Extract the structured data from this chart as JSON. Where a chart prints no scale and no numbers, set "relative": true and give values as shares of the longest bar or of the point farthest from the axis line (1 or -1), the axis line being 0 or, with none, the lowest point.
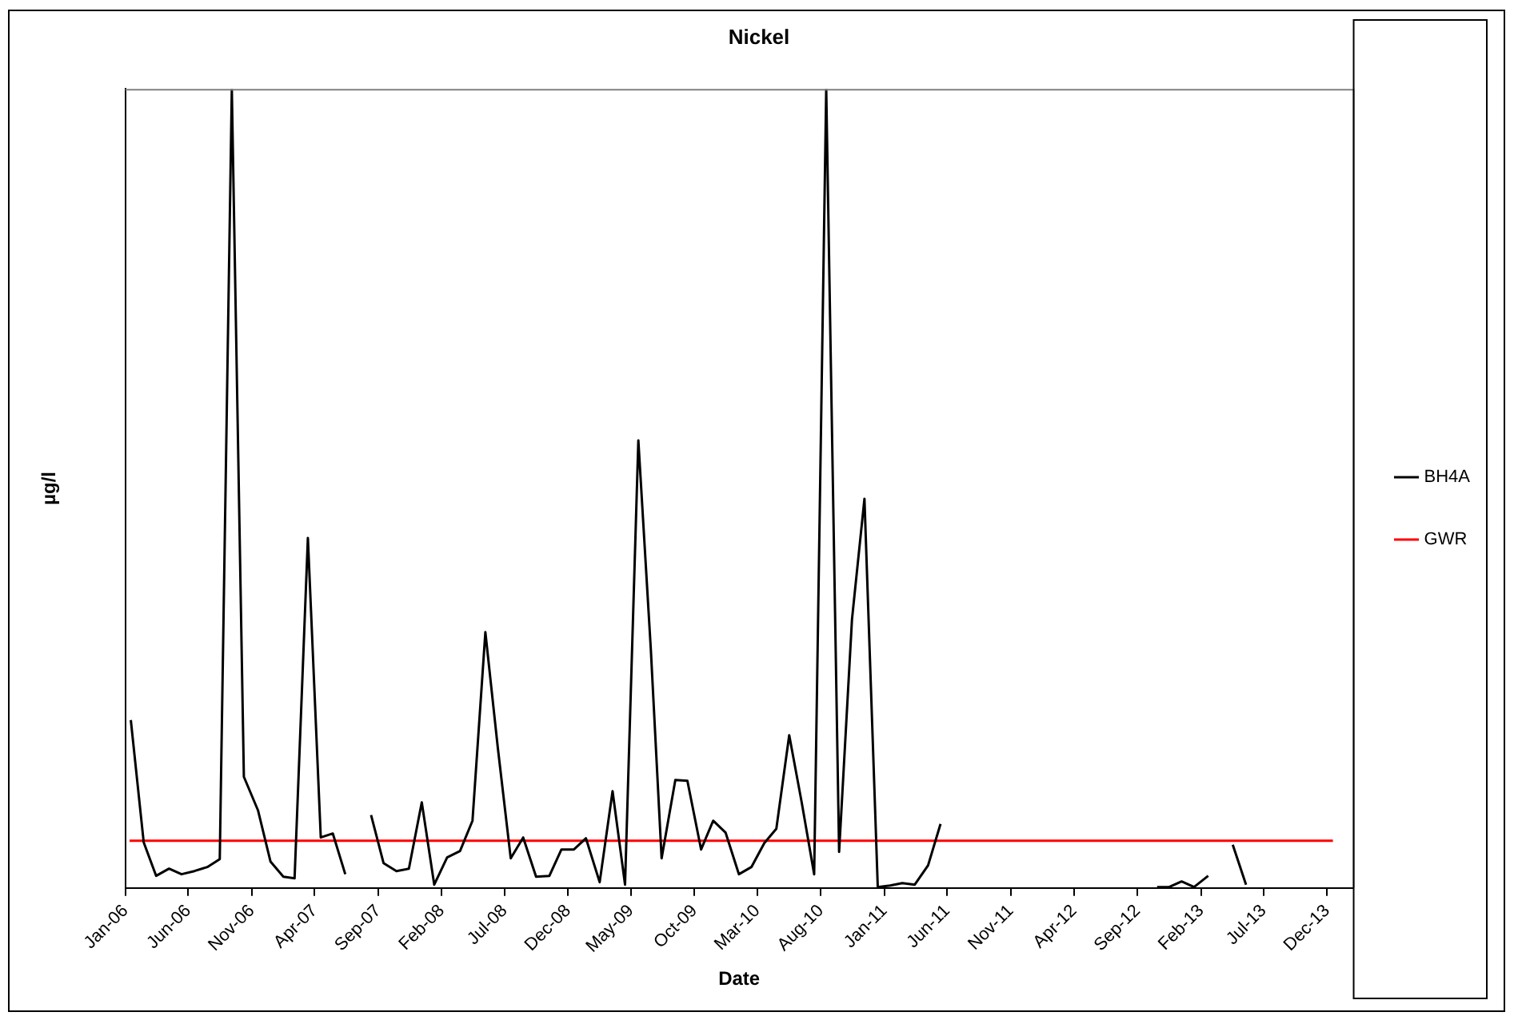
{
  "chart_data": {
    "type": "line",
    "title": "Nickel",
    "xlabel": "Date",
    "ylabel": "µg/l",
    "relative": true,
    "legend": "right",
    "grid": false,
    "marker": "none",
    "line_style": "solid",
    "xlim": [
      "2006-01-01",
      "2014-02-01"
    ],
    "xticks": [
      {
        "value": "2006-01-01",
        "label": "Jan-06"
      },
      {
        "value": "2006-06-01",
        "label": "Jun-06"
      },
      {
        "value": "2006-11-01",
        "label": "Nov-06"
      },
      {
        "value": "2007-04-01",
        "label": "Apr-07"
      },
      {
        "value": "2007-09-01",
        "label": "Sep-07"
      },
      {
        "value": "2008-02-01",
        "label": "Feb-08"
      },
      {
        "value": "2008-07-01",
        "label": "Jul-08"
      },
      {
        "value": "2008-12-01",
        "label": "Dec-08"
      },
      {
        "value": "2009-05-01",
        "label": "May-09"
      },
      {
        "value": "2009-10-01",
        "label": "Oct-09"
      },
      {
        "value": "2010-03-01",
        "label": "Mar-10"
      },
      {
        "value": "2010-08-01",
        "label": "Aug-10"
      },
      {
        "value": "2011-01-01",
        "label": "Jan-11"
      },
      {
        "value": "2011-06-01",
        "label": "Jun-11"
      },
      {
        "value": "2011-11-01",
        "label": "Nov-11"
      },
      {
        "value": "2012-04-01",
        "label": "Apr-12"
      },
      {
        "value": "2012-09-01",
        "label": "Sep-12"
      },
      {
        "value": "2013-02-01",
        "label": "Feb-13"
      },
      {
        "value": "2013-07-01",
        "label": "Jul-13"
      },
      {
        "value": "2013-12-01",
        "label": "Dec-13"
      }
    ],
    "series": [
      {
        "name": "BH4A",
        "color": "#000000",
        "x": [
          "2006-01-14",
          "2006-02-14",
          "2006-03-16",
          "2006-04-16",
          "2006-05-16",
          "2006-06-16",
          "2006-07-17",
          "2006-08-16",
          "2006-09-14",
          "2006-10-13",
          "2006-11-16",
          "2006-12-16",
          "2007-01-16",
          "2007-02-12",
          "2007-03-16",
          "2007-04-16",
          "2007-05-15",
          "2007-06-14",
          "2007-07-15",
          "2007-08-15",
          "2007-09-14",
          "2007-10-15",
          "2007-11-14",
          "2007-12-15",
          "2008-01-14",
          "2008-02-14",
          "2008-03-16",
          "2008-04-15",
          "2008-05-16",
          "2008-06-15",
          "2008-07-16",
          "2008-08-15",
          "2008-09-15",
          "2008-10-17",
          "2008-11-15",
          "2008-12-15",
          "2009-01-13",
          "2009-02-15",
          "2009-03-18",
          "2009-04-17",
          "2009-05-19",
          "2009-06-18",
          "2009-07-14",
          "2009-08-16",
          "2009-09-14",
          "2009-10-17",
          "2009-11-15",
          "2009-12-15",
          "2010-01-16",
          "2010-02-15",
          "2010-03-18",
          "2010-04-16",
          "2010-05-17",
          "2010-06-16",
          "2010-07-16",
          "2010-08-14",
          "2010-09-14",
          "2010-10-15",
          "2010-11-14",
          "2010-12-16",
          "2011-01-15",
          "2011-02-13",
          "2011-03-15",
          "2011-04-16",
          "2011-05-16",
          "2011-06-15",
          "2012-10-18",
          "2012-11-16",
          "2012-12-16",
          "2013-01-15",
          "2013-02-18",
          "2013-03-18",
          "2013-04-18",
          "2013-05-20"
        ],
        "values": [
          0.21,
          0.057,
          0.015,
          0.024,
          0.017,
          0.021,
          0.026,
          0.036,
          1,
          0.139,
          0.097,
          0.033,
          0.014,
          0.012,
          0.438,
          0.063,
          0.068,
          0.017,
          null,
          0.091,
          0.031,
          0.021,
          0.024,
          0.107,
          0.004,
          0.038,
          0.046,
          0.084,
          0.32,
          0.175,
          0.037,
          0.063,
          0.014,
          0.015,
          0.048,
          0.048,
          0.062,
          0.007,
          0.121,
          0.004,
          0.56,
          0.299,
          0.037,
          0.135,
          0.134,
          0.048,
          0.084,
          0.069,
          0.017,
          0.026,
          0.056,
          0.074,
          0.191,
          0.107,
          0.017,
          1,
          0.045,
          0.336,
          0.487,
          0.001,
          0.003,
          0.006,
          0.004,
          0.028,
          0.08,
          null,
          0.001,
          0.001,
          0.008,
          0.001,
          0.015,
          null,
          0.054,
          0.004
        ]
      },
      {
        "name": "GWR",
        "color": "#ff0000",
        "x": [
          "2006-01-11",
          "2013-12-15"
        ],
        "values": [
          0.059,
          0.059
        ]
      }
    ]
  }
}
